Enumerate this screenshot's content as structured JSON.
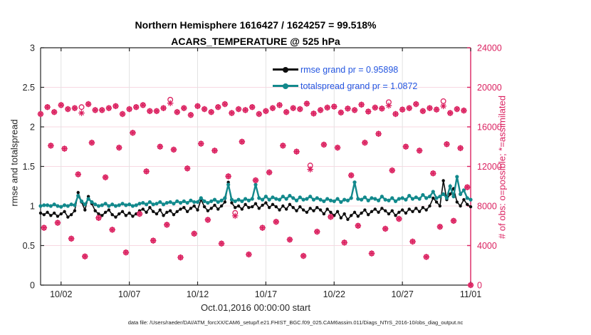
{
  "title": {
    "line1": "Northern Hemisphere 1616427 / 1624257 = 99.518%",
    "line2": "ACARS_TEMPERATURE @ 525 hPa"
  },
  "x_axis": {
    "label": "Oct.01,2016 00:00:00 start",
    "tick_days": [
      1,
      6,
      11,
      16,
      21,
      26,
      31
    ],
    "tick_labels": [
      "10/02",
      "10/07",
      "10/12",
      "10/17",
      "10/22",
      "10/27",
      "11/01"
    ]
  },
  "y_left": {
    "label": "rmse and totalspread",
    "ticks": [
      0,
      0.5,
      1,
      1.5,
      2,
      2.5,
      3
    ],
    "tick_labels": [
      "0",
      "0.5",
      "1",
      "1.5",
      "2",
      "2.5",
      "3"
    ]
  },
  "y_right": {
    "label": "# of obs: o=possible; *=assimilated",
    "ticks": [
      0,
      4000,
      8000,
      12000,
      16000,
      20000,
      24000
    ],
    "tick_labels": [
      "0",
      "4000",
      "8000",
      "12000",
      "16000",
      "20000",
      "24000"
    ]
  },
  "legend": {
    "items": [
      {
        "label": "rmse grand pr = 0.95898",
        "series": "rmse"
      },
      {
        "label": "totalspread grand pr = 1.0872",
        "series": "totalspread"
      }
    ]
  },
  "footer": "data file: /Users/raeder/DAI/ATM_forcXX/CAM6_setup/f.e21.FHIST_BGC.f09_025.CAM6assim.011/Diags_NTrS_2016-10/obs_diag_output.nc",
  "colors": {
    "obs": "#DB2160",
    "rmse": "#0d0d0d",
    "totalspread": "#12898C",
    "legend_text": "#2456E0",
    "axis_dark": "#262626",
    "grid_h": "#F8D8E2",
    "grid_v": "#E2E2E2",
    "title": "#000000"
  },
  "chart_data": {
    "type": "line",
    "title": "Northern Hemisphere 1616427 / 1624257 = 99.518% | ACARS_TEMPERATURE @ 525 hPa",
    "xlabel": "Oct.01,2016 00:00:00 start",
    "ylabel_left": "rmse and totalspread",
    "ylabel_right": "# of obs: o=possible; *=assimilated",
    "x_unit": "days since Oct 01, 2016 00:00",
    "t_start": -0.5,
    "t_step": 0.25,
    "n_points": 127,
    "xlim": [
      -0.5,
      31
    ],
    "ylim_left": [
      0,
      3
    ],
    "ylim_right": [
      0,
      24000
    ],
    "grid": true,
    "legend_position": "top-center-inside",
    "rmse_grand_mean": 0.95898,
    "totalspread_grand_mean": 1.0872,
    "series": [
      {
        "name": "rmse",
        "axis": "left",
        "values": [
          0.91,
          0.89,
          0.92,
          0.88,
          0.91,
          0.87,
          0.9,
          0.93,
          0.86,
          0.89,
          0.94,
          1.17,
          1.05,
          0.95,
          1.12,
          1.03,
          0.94,
          0.9,
          0.88,
          0.92,
          0.95,
          0.89,
          0.86,
          0.9,
          0.93,
          0.88,
          0.91,
          0.87,
          0.9,
          0.94,
          0.96,
          0.92,
          0.98,
          0.93,
          0.9,
          0.95,
          0.88,
          0.92,
          0.94,
          0.89,
          0.93,
          0.96,
          0.98,
          0.93,
          0.97,
          1.0,
          0.95,
          1.08,
          0.99,
          0.94,
          0.97,
          1.01,
          0.96,
          1.0,
          1.05,
          1.3,
          1.04,
          0.98,
          1.0,
          0.96,
          1.02,
          0.98,
          0.99,
          1.03,
          0.97,
          1.01,
          1.04,
          0.98,
          1.02,
          0.99,
          0.95,
          1.0,
          0.96,
          1.02,
          0.98,
          0.94,
          0.99,
          0.95,
          0.92,
          0.97,
          0.94,
          0.98,
          0.95,
          0.9,
          0.96,
          0.92,
          0.88,
          0.93,
          0.85,
          0.9,
          0.83,
          0.88,
          0.92,
          0.87,
          0.91,
          0.95,
          0.89,
          0.93,
          0.96,
          0.92,
          0.97,
          0.94,
          0.9,
          0.94,
          0.88,
          0.92,
          0.95,
          0.91,
          0.96,
          0.93,
          0.97,
          0.93,
          0.98,
          0.95,
          1.0,
          1.1,
          1.05,
          1.0,
          1.32,
          1.08,
          1.15,
          1.22,
          1.05,
          1.0,
          1.08,
          1.02,
          0.99
        ]
      },
      {
        "name": "totalspread",
        "axis": "left",
        "values": [
          1.0,
          1.01,
          1.01,
          1.0,
          1.02,
          1.0,
          0.99,
          1.01,
          1.0,
          1.02,
          1.01,
          1.13,
          1.06,
          1.02,
          1.09,
          1.05,
          1.02,
          1.0,
          1.01,
          1.03,
          1.0,
          1.02,
          1.0,
          1.01,
          1.03,
          1.01,
          1.02,
          1.0,
          1.01,
          1.03,
          1.04,
          1.02,
          1.05,
          1.02,
          1.03,
          1.05,
          1.02,
          1.04,
          1.05,
          1.03,
          1.06,
          1.04,
          1.06,
          1.04,
          1.07,
          1.05,
          1.05,
          1.1,
          1.06,
          1.04,
          1.06,
          1.08,
          1.05,
          1.07,
          1.1,
          1.27,
          1.08,
          1.06,
          1.08,
          1.06,
          1.09,
          1.07,
          1.09,
          1.27,
          1.1,
          1.08,
          1.12,
          1.08,
          1.11,
          1.09,
          1.08,
          1.12,
          1.09,
          1.13,
          1.1,
          1.07,
          1.11,
          1.08,
          1.09,
          1.12,
          1.08,
          1.1,
          1.08,
          1.06,
          1.09,
          1.07,
          1.06,
          1.09,
          1.05,
          1.08,
          1.07,
          1.1,
          1.3,
          1.09,
          1.08,
          1.11,
          1.07,
          1.1,
          1.09,
          1.07,
          1.12,
          1.08,
          1.07,
          1.1,
          1.06,
          1.09,
          1.1,
          1.08,
          1.13,
          1.09,
          1.11,
          1.09,
          1.14,
          1.1,
          1.12,
          1.18,
          1.1,
          1.12,
          1.15,
          1.1,
          1.25,
          1.12,
          1.37,
          1.15,
          1.2,
          1.1,
          1.08
        ]
      },
      {
        "name": "obs_assimilated",
        "axis": "right",
        "values": [
          17300,
          5800,
          18000,
          14100,
          17500,
          6300,
          18200,
          13800,
          17800,
          4700,
          17900,
          11200,
          17400,
          2900,
          18300,
          14400,
          17700,
          6800,
          17700,
          10900,
          17900,
          5600,
          18100,
          13900,
          17300,
          3300,
          17800,
          15400,
          18000,
          7200,
          18200,
          11500,
          17600,
          4500,
          17600,
          14000,
          17900,
          6100,
          18400,
          13700,
          17500,
          2800,
          17900,
          11800,
          17200,
          5200,
          18100,
          14300,
          17800,
          6600,
          17500,
          13600,
          18000,
          4200,
          18300,
          11000,
          17400,
          7000,
          17800,
          14500,
          17700,
          3100,
          18000,
          10600,
          17300,
          5800,
          17600,
          11400,
          17900,
          6400,
          18200,
          14100,
          17500,
          4600,
          17900,
          13500,
          17800,
          2950,
          18350,
          11700,
          17350,
          5400,
          17700,
          14200,
          17950,
          6900,
          18050,
          13900,
          17450,
          4300,
          17850,
          11100,
          17700,
          6000,
          18250,
          14400,
          17550,
          3200,
          17950,
          15300,
          17850,
          5700,
          18150,
          11600,
          17300,
          6700,
          17750,
          14000,
          17900,
          4400,
          18300,
          13600,
          17600,
          2850,
          17900,
          11300,
          17750,
          5900,
          18100,
          14250,
          17400,
          6500,
          17800,
          13850,
          17650,
          9900,
          0
        ]
      }
    ],
    "obs_possible_extra_by_index": {
      "12": 600,
      "38": 350,
      "57": 300,
      "79": 400,
      "102": 350,
      "118": 500
    }
  }
}
